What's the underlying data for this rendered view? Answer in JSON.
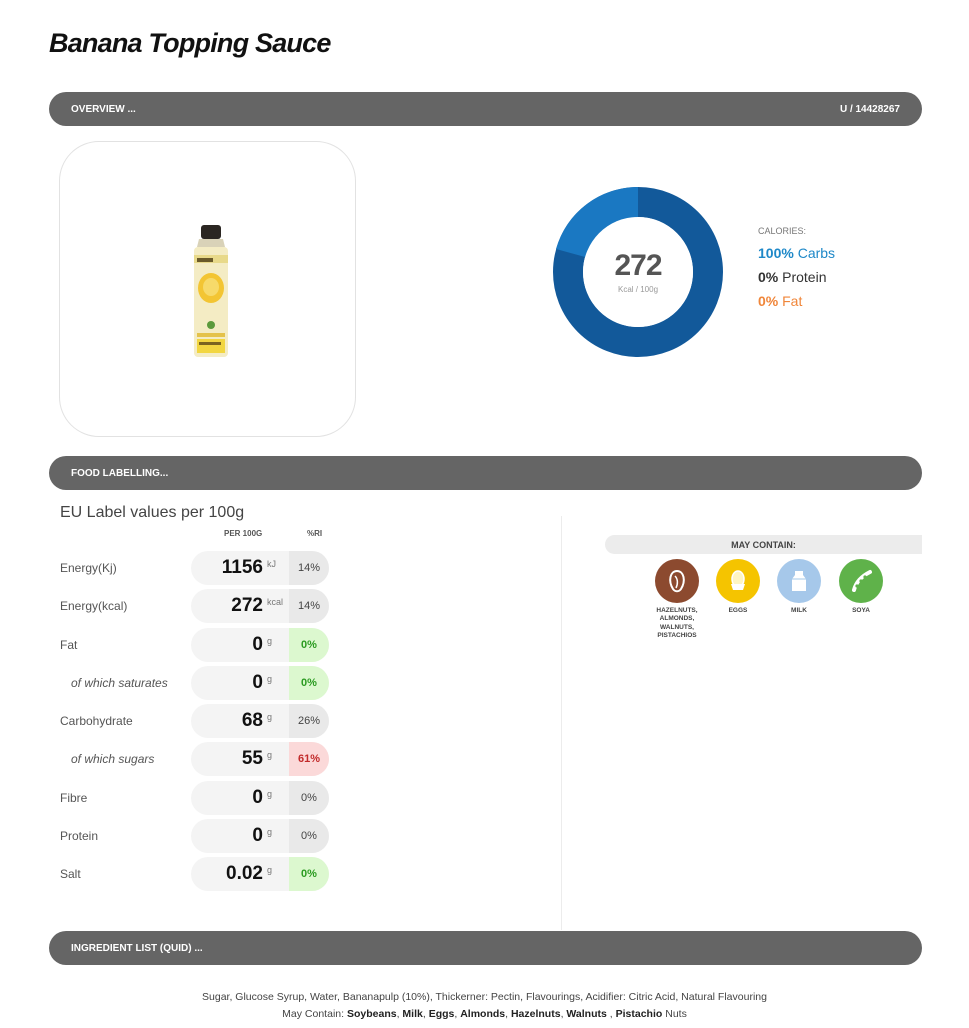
{
  "product": {
    "title": "Banana Topping Sauce"
  },
  "overview": {
    "label": "OVERVIEW ...",
    "code": "U / 14428267"
  },
  "calories": {
    "value": "272",
    "unit": "Kcal / 100g",
    "label": "CALORIES:",
    "carbs": {
      "pct": "100%",
      "name": "Carbs"
    },
    "protein": {
      "pct": "0%",
      "name": "Protein"
    },
    "fat": {
      "pct": "0%",
      "name": "Fat"
    },
    "colors": {
      "carbs": "#1e88c8",
      "protein": "#333333",
      "fat": "#f0863a",
      "ring_outer": "#1a6db0",
      "ring_inner": "#12599a"
    }
  },
  "food_labelling": {
    "label": "FOOD LABELLING...",
    "eu_title": "EU Label values per 100g",
    "col_per100": "PER 100G",
    "col_ri": "%RI",
    "rows": [
      {
        "name": "Energy(Kj)",
        "value": "1156",
        "unit": "kJ",
        "ri": "14%",
        "ri_level": "neutral",
        "sub": false
      },
      {
        "name": "Energy(kcal)",
        "value": "272",
        "unit": "kcal",
        "ri": "14%",
        "ri_level": "neutral",
        "sub": false
      },
      {
        "name": "Fat",
        "value": "0",
        "unit": "g",
        "ri": "0%",
        "ri_level": "green",
        "sub": false
      },
      {
        "name": "of which saturates",
        "value": "0",
        "unit": "g",
        "ri": "0%",
        "ri_level": "green",
        "sub": true
      },
      {
        "name": "Carbohydrate",
        "value": "68",
        "unit": "g",
        "ri": "26%",
        "ri_level": "neutral",
        "sub": false
      },
      {
        "name": "of which sugars",
        "value": "55",
        "unit": "g",
        "ri": "61%",
        "ri_level": "red",
        "sub": true
      },
      {
        "name": "Fibre",
        "value": "0",
        "unit": "g",
        "ri": "0%",
        "ri_level": "neutral",
        "sub": false
      },
      {
        "name": "Protein",
        "value": "0",
        "unit": "g",
        "ri": "0%",
        "ri_level": "neutral",
        "sub": false
      },
      {
        "name": "Salt",
        "value": "0.02",
        "unit": "g",
        "ri": "0%",
        "ri_level": "green",
        "sub": false
      }
    ]
  },
  "may_contain": {
    "label": "MAY CONTAIN:",
    "items": [
      {
        "name": "HAZELNUTS, ALMONDS, WALNUTS, PISTACHIOS",
        "icon": "nut-icon",
        "color": "#8c4a2f"
      },
      {
        "name": "EGGS",
        "icon": "egg-icon",
        "color": "#f5c400"
      },
      {
        "name": "MILK",
        "icon": "milk-icon",
        "color": "#a6c8ea"
      },
      {
        "name": "SOYA",
        "icon": "soya-icon",
        "color": "#5fb24a"
      }
    ]
  },
  "ingredients": {
    "label": "INGREDIENT LIST (QUID) ...",
    "list": "Sugar, Glucose Syrup, Water, Bananapulp (10%), Thickerner: Pectin, Flavourings, Acidifier: Citric Acid, Natural Flavouring",
    "may_contain_prefix": "May Contain:",
    "may_contain_items": [
      "Soybeans",
      "Milk",
      "Eggs",
      "Almonds",
      "Hazelnuts",
      "Walnuts",
      "Pistachio"
    ],
    "may_contain_suffix": "Nuts"
  }
}
